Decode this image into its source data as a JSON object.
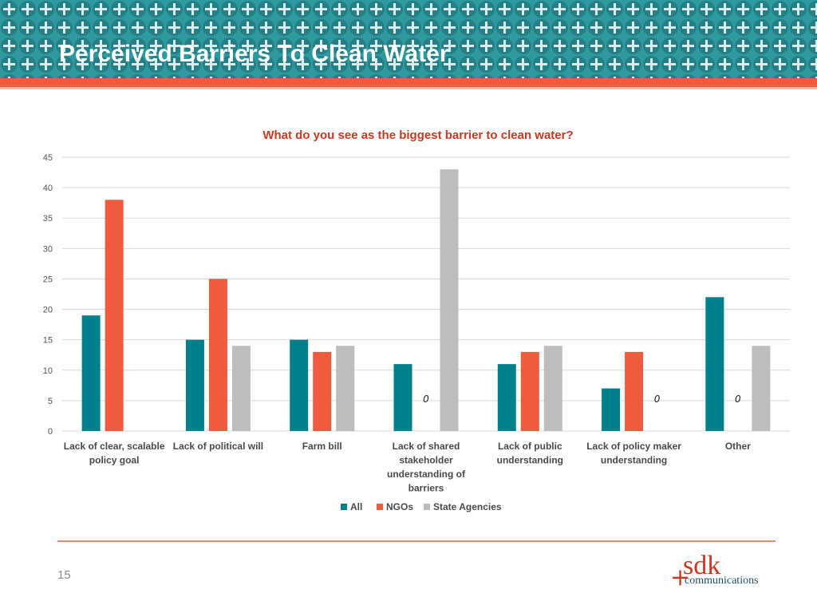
{
  "slide": {
    "title": "Perceived Barriers To Clean Water",
    "page_number": "15"
  },
  "colors": {
    "banner": "#2e9aa0",
    "accent": "#ef5b3d",
    "all": "#00808a",
    "ngos": "#ef5b3d",
    "state_agencies": "#bdbdbd"
  },
  "logo": {
    "main": "sdk",
    "sub": "communications",
    "symbol": "+"
  },
  "chart_data": {
    "type": "bar",
    "title": "What do you see as the biggest barrier to clean water?",
    "xlabel": "",
    "ylabel": "",
    "ylim": [
      0,
      45
    ],
    "yticks": [
      "0",
      "5",
      "10",
      "15",
      "20",
      "25",
      "30",
      "35",
      "40",
      "45"
    ],
    "grid": true,
    "legend_position": "bottom",
    "categories": [
      [
        "Lack of clear, scalable",
        "policy goal"
      ],
      [
        "Lack of political will"
      ],
      [
        "Farm bill"
      ],
      [
        "Lack of shared",
        "stakeholder",
        "understanding of",
        "barriers"
      ],
      [
        "Lack of public",
        "understanding"
      ],
      [
        "Lack of policy maker",
        "understanding"
      ],
      [
        "Other"
      ]
    ],
    "series": [
      {
        "name": "All",
        "color": "#00808a",
        "values": [
          19,
          15,
          15,
          11,
          11,
          7,
          22
        ]
      },
      {
        "name": "NGOs",
        "color": "#ef5b3d",
        "values": [
          38,
          25,
          13,
          0,
          13,
          13,
          0
        ]
      },
      {
        "name": "State Agencies",
        "color": "#bdbdbd",
        "values": [
          0,
          14,
          14,
          43,
          14,
          0,
          14
        ]
      }
    ],
    "data_labels": [
      {
        "category_index": 3,
        "series": "NGOs",
        "text": "0"
      },
      {
        "category_index": 5,
        "series": "State Agencies",
        "text": "0"
      },
      {
        "category_index": 6,
        "series": "NGOs",
        "text": "0"
      }
    ]
  }
}
